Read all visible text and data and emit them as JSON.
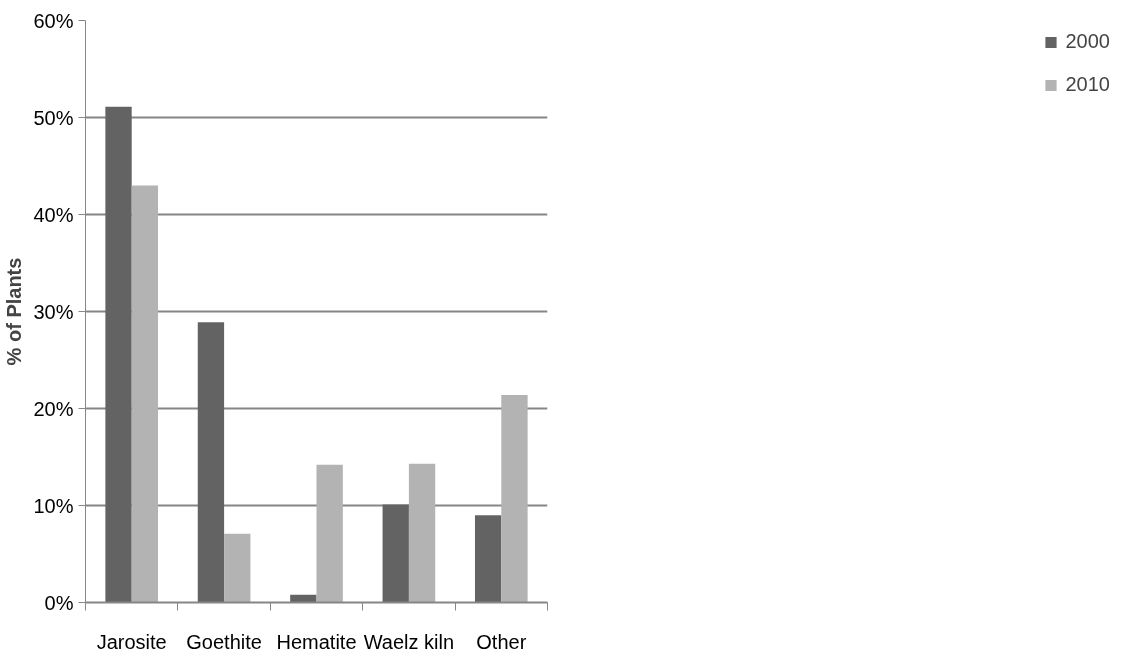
{
  "chart_data": {
    "type": "bar",
    "ylabel": "% of Plants",
    "categories": [
      "Jarosite",
      "Goethite",
      "Hematite",
      "Waelz kiln",
      "Other"
    ],
    "series": [
      {
        "name": "2000",
        "color": "#636363",
        "values": [
          51.1,
          28.9,
          0.8,
          10.1,
          9.0
        ]
      },
      {
        "name": "2010",
        "color": "#b3b3b3",
        "values": [
          43.0,
          7.1,
          14.2,
          14.3,
          21.4
        ]
      }
    ],
    "ylim": [
      0,
      60
    ],
    "yticks": [
      {
        "value": 0,
        "label": "0%"
      },
      {
        "value": 10,
        "label": "10%"
      },
      {
        "value": 20,
        "label": "20%"
      },
      {
        "value": 30,
        "label": "30%"
      },
      {
        "value": 40,
        "label": "40%"
      },
      {
        "value": 50,
        "label": "50%"
      },
      {
        "value": 60,
        "label": "60%"
      }
    ],
    "grid": "y",
    "legend": "right"
  }
}
